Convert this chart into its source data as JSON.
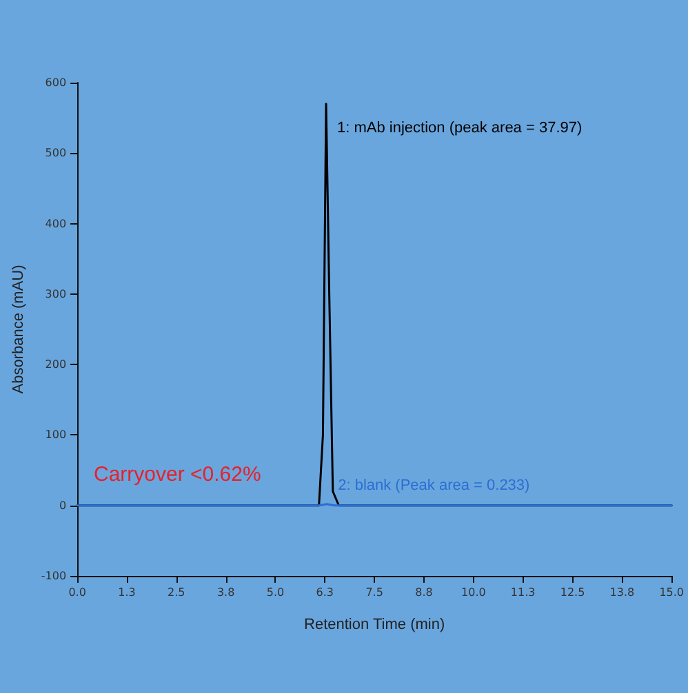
{
  "chart_data": {
    "type": "line",
    "xlabel": "Retention Time (min)",
    "ylabel": "Absorbance (mAU)",
    "xlim": [
      0,
      15
    ],
    "xticks": [
      {
        "value": 0,
        "label": "0.0"
      },
      {
        "value": 1.25,
        "label": "1.3"
      },
      {
        "value": 2.5,
        "label": "2.5"
      },
      {
        "value": 3.75,
        "label": "3.8"
      },
      {
        "value": 5,
        "label": "5.0"
      },
      {
        "value": 6.25,
        "label": "6.3"
      },
      {
        "value": 7.5,
        "label": "7.5"
      },
      {
        "value": 8.75,
        "label": "8.8"
      },
      {
        "value": 10,
        "label": "10.0"
      },
      {
        "value": 11.25,
        "label": "11.3"
      },
      {
        "value": 12.5,
        "label": "12.5"
      },
      {
        "value": 13.75,
        "label": "13.8"
      },
      {
        "value": 15,
        "label": "15.0"
      }
    ],
    "ylim": [
      -100,
      600
    ],
    "yticks": [
      -100,
      0,
      100,
      200,
      300,
      400,
      500,
      600
    ],
    "series": [
      {
        "name": "1: mAb injection (peak area = 37.97)",
        "color": "#000000",
        "x": [
          0,
          3,
          6.1,
          6.2,
          6.28,
          6.36,
          6.45,
          6.6,
          10,
          15
        ],
        "values": [
          0,
          0,
          0,
          100,
          570,
          300,
          20,
          0,
          0,
          0
        ]
      },
      {
        "name": "2: blank (Peak area = 0.233)",
        "color": "#2a6fd0",
        "x": [
          0,
          3,
          6.1,
          6.3,
          6.5,
          10,
          15
        ],
        "values": [
          0,
          0,
          0,
          2,
          0,
          0,
          0
        ]
      }
    ],
    "annotations": [
      "Carryover <0.62%"
    ],
    "grid": false,
    "legend": false,
    "marker": "none",
    "line_style": "solid"
  }
}
